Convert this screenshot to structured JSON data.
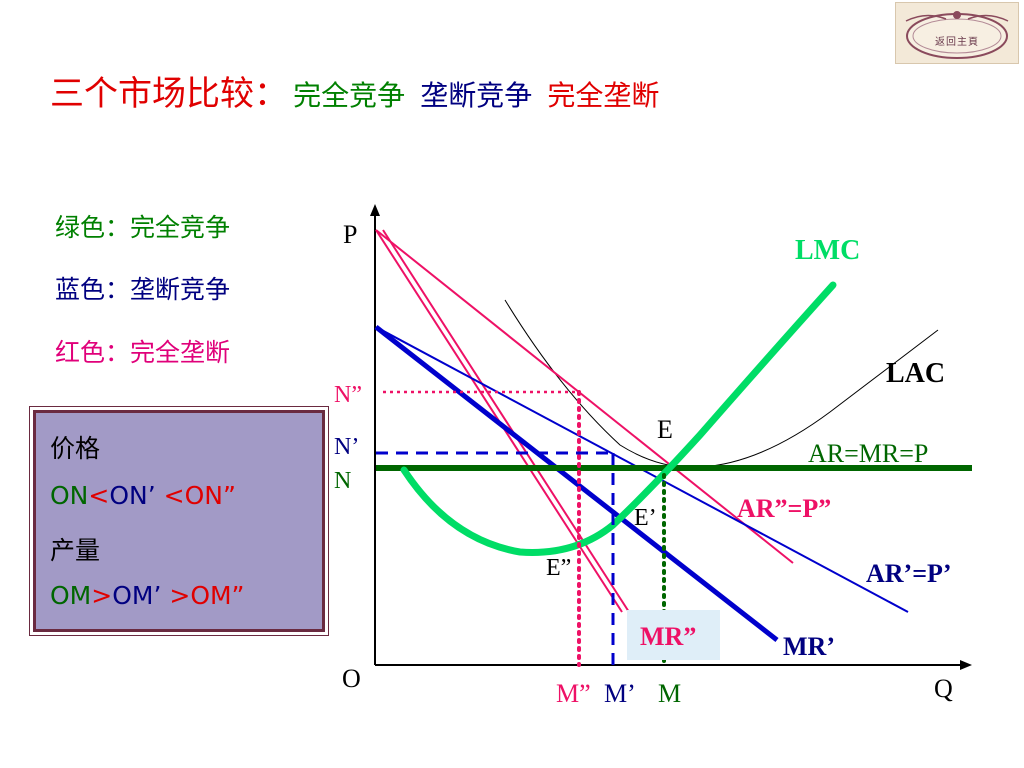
{
  "title": {
    "main": "三个市场比较：",
    "perfect": "完全竞争",
    "monopolistic": "垄断竞争",
    "monopoly": "完全垄断"
  },
  "home_button": {
    "label": "返回主頁"
  },
  "legend": [
    {
      "text": "绿色：完全竞争",
      "color": "#008000"
    },
    {
      "text": "蓝色：垄断竞争",
      "color": "#000080"
    },
    {
      "text": "红色：完全垄断",
      "color": "#e0007a"
    }
  ],
  "info_box": {
    "price_heading": "价格",
    "price_parts": [
      "ON",
      "<",
      "ON’",
      " <",
      "ON”"
    ],
    "quantity_heading": "产量",
    "quantity_parts": [
      "OM",
      ">",
      "OM’",
      " >",
      "OM”"
    ]
  },
  "colors": {
    "green": "#00dd66",
    "dark_green": "#006600",
    "blue": "#0000cc",
    "red": "#ee1166",
    "pink": "#ee1166",
    "navy": "#000080",
    "box_bg": "#a29ac6",
    "mr_label_bg": "#dfeef8"
  },
  "diagram": {
    "axis_p": "P",
    "axis_q": "Q",
    "origin": "O",
    "y_ticks": [
      "N”",
      "N’",
      "N"
    ],
    "x_ticks": [
      "M”",
      "M’",
      "M"
    ],
    "curve_labels": {
      "lmc": "LMC",
      "lac": "LAC",
      "ar_mr_p": "AR=MR=P",
      "ar2": "AR”=P”",
      "ar1": "AR’=P’",
      "mr2": "MR”",
      "mr1": "MR’"
    },
    "points": {
      "e": "E",
      "e1": "E’",
      "e2": "E”"
    }
  }
}
